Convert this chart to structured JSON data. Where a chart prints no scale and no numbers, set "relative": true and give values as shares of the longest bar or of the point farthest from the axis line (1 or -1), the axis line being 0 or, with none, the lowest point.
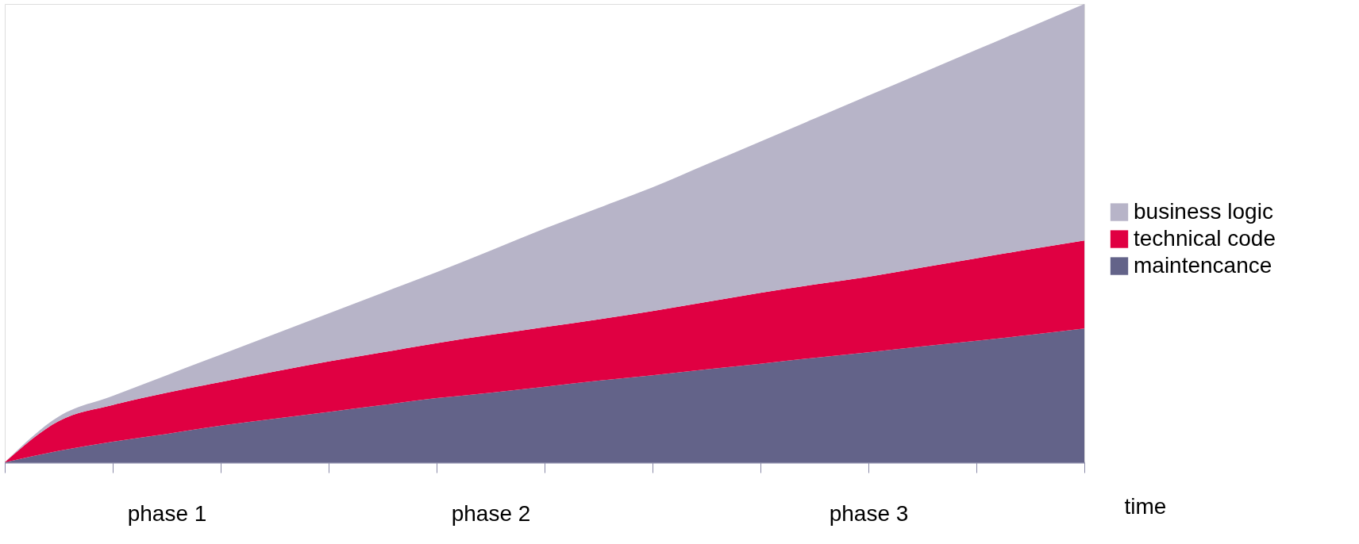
{
  "chart_data": {
    "type": "area",
    "stacked": true,
    "relative": true,
    "xlabel": "time",
    "legend": "right",
    "grid": false,
    "categories": [
      null,
      null,
      null,
      "phase 1",
      null,
      null,
      null,
      null,
      null,
      "phase 2",
      null,
      null,
      null,
      null,
      null,
      null,
      "phase 3",
      null,
      null,
      null,
      null
    ],
    "series": [
      {
        "name": "maintencance",
        "color": "#636389",
        "values": [
          0,
          0.025,
          0.045,
          0.062,
          0.08,
          0.095,
          0.11,
          0.125,
          0.14,
          0.152,
          0.165,
          0.178,
          0.19,
          0.203,
          0.215,
          0.228,
          0.24,
          0.253,
          0.265,
          0.278,
          0.292
        ]
      },
      {
        "name": "technical code",
        "color": "#e00042",
        "values": [
          0,
          0.065,
          0.08,
          0.09,
          0.095,
          0.103,
          0.11,
          0.115,
          0.12,
          0.126,
          0.13,
          0.134,
          0.14,
          0.147,
          0.155,
          0.16,
          0.165,
          0.172,
          0.18,
          0.187,
          0.192
        ]
      },
      {
        "name": "business logic",
        "color": "#b7b4c8",
        "values": [
          0,
          0.01,
          0.02,
          0.038,
          0.06,
          0.082,
          0.105,
          0.13,
          0.155,
          0.184,
          0.215,
          0.243,
          0.27,
          0.3,
          0.33,
          0.362,
          0.395,
          0.425,
          0.455,
          0.485,
          0.516
        ]
      }
    ]
  }
}
